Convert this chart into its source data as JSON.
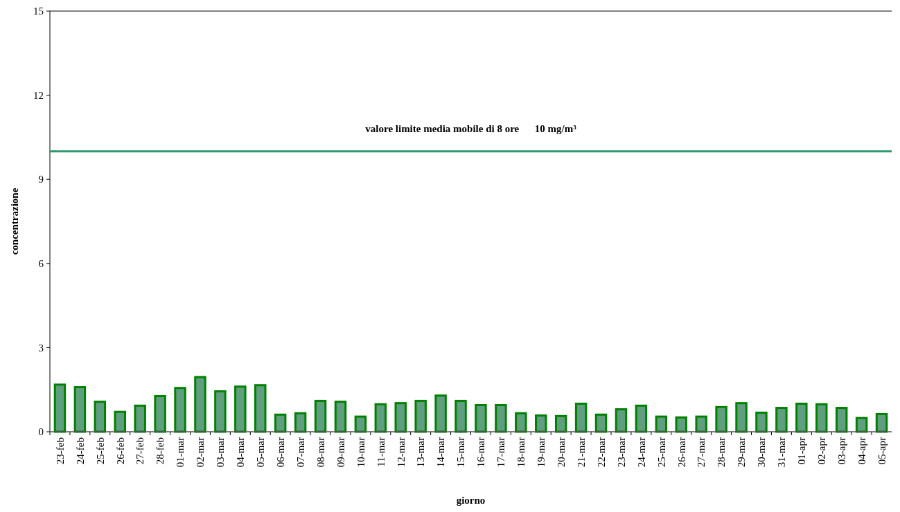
{
  "chart_data": {
    "type": "bar",
    "xlabel": "giorno",
    "ylabel": "concentrazione",
    "categories": [
      "23-feb",
      "24-feb",
      "25-feb",
      "26-feb",
      "27-feb",
      "28-feb",
      "01-mar",
      "02-mar",
      "03-mar",
      "04-mar",
      "05-mar",
      "06-mar",
      "07-mar",
      "08-mar",
      "09-mar",
      "10-mar",
      "11-mar",
      "12-mar",
      "13-mar",
      "14-mar",
      "15-mar",
      "16-mar",
      "17-mar",
      "18-mar",
      "19-mar",
      "20-mar",
      "21-mar",
      "22-mar",
      "23-mar",
      "24-mar",
      "25-mar",
      "26-mar",
      "27-mar",
      "28-mar",
      "29-mar",
      "30-mar",
      "31-mar",
      "01-apr",
      "02-apr",
      "03-apr",
      "04-apr",
      "05-apr"
    ],
    "values": [
      1.68,
      1.59,
      1.07,
      0.71,
      0.93,
      1.27,
      1.56,
      1.95,
      1.44,
      1.61,
      1.66,
      0.61,
      0.66,
      1.1,
      1.07,
      0.54,
      0.98,
      1.02,
      1.1,
      1.29,
      1.1,
      0.95,
      0.95,
      0.66,
      0.58,
      0.56,
      1.0,
      0.61,
      0.8,
      0.93,
      0.54,
      0.51,
      0.54,
      0.88,
      1.02,
      0.68,
      0.85,
      1.0,
      0.98,
      0.85,
      0.49,
      0.63
    ],
    "color": "#5f9f80",
    "ylim": [
      0,
      15
    ],
    "yticks": [
      0,
      3,
      6,
      9,
      12,
      15
    ],
    "grid": false,
    "ref_lines": [
      {
        "axis": "y",
        "value": 10,
        "label": "valore limite media mobile di 8 ore      10 mg/m³",
        "color": "#2e9a6b"
      }
    ]
  }
}
